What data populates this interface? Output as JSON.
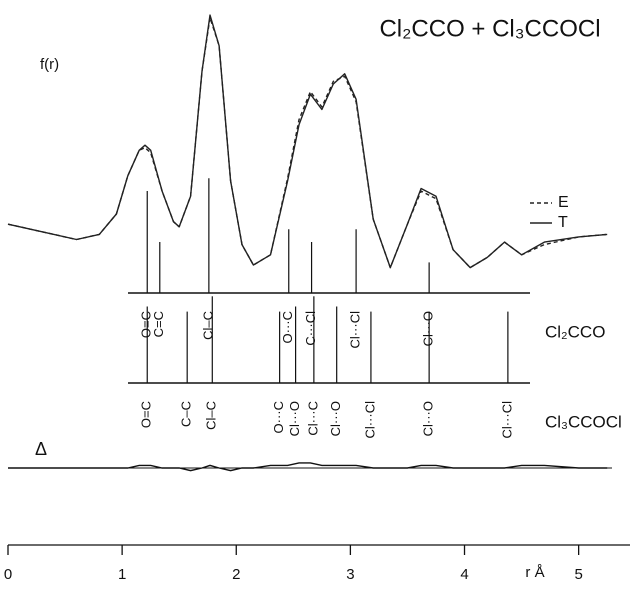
{
  "chart_data": {
    "type": "line",
    "title": "Cl₂CCO + Cl₃CCOCl",
    "ylabel": "f(r)",
    "xlabel": "r Å",
    "x": [
      0,
      0.3,
      0.6,
      0.8,
      0.95,
      1.05,
      1.15,
      1.2,
      1.25,
      1.35,
      1.45,
      1.5,
      1.6,
      1.7,
      1.77,
      1.85,
      1.95,
      2.05,
      2.15,
      2.3,
      2.45,
      2.55,
      2.65,
      2.75,
      2.85,
      2.95,
      3.05,
      3.2,
      3.35,
      3.5,
      3.62,
      3.75,
      3.9,
      4.05,
      4.2,
      4.35,
      4.5,
      4.7,
      5.0,
      5.25
    ],
    "series": [
      {
        "name": "E",
        "color": "#222222",
        "style": "dashed",
        "values": [
          16,
          13,
          10,
          12,
          20,
          35,
          45,
          46,
          44,
          29,
          17,
          15,
          27,
          76,
          97,
          86,
          33,
          8,
          0,
          4,
          34,
          57,
          68,
          62,
          72,
          74,
          64,
          18,
          -1,
          16,
          29,
          26,
          6,
          -1,
          3,
          9,
          4,
          8,
          11,
          12
        ]
      },
      {
        "name": "T",
        "color": "#222222",
        "style": "solid",
        "values": [
          16,
          13,
          10,
          12,
          20,
          35,
          45,
          47,
          45,
          29,
          17,
          15,
          27,
          76,
          98,
          86,
          33,
          8,
          0,
          4,
          33,
          55,
          67,
          61,
          71,
          75,
          65,
          18,
          -1,
          16,
          30,
          27,
          6,
          -1,
          3,
          9,
          4,
          9,
          11,
          12
        ]
      }
    ],
    "difference": {
      "label": "Δ",
      "values": [
        0,
        0,
        0,
        0,
        0,
        0,
        1,
        1,
        1,
        0,
        0,
        0,
        -1,
        0,
        1,
        0,
        -1,
        0,
        0,
        1,
        1,
        2,
        2,
        1,
        1,
        1,
        1,
        0,
        0,
        0,
        1,
        1,
        0,
        0,
        0,
        0,
        1,
        1,
        0,
        0
      ]
    },
    "sticks": [
      {
        "name": "Cl₂CCO",
        "lines": [
          {
            "r": 1.22,
            "height": 40,
            "label": "O=C"
          },
          {
            "r": 1.33,
            "height": 20,
            "label": "C=C"
          },
          {
            "r": 1.76,
            "height": 45,
            "label": "Cl–C"
          },
          {
            "r": 2.46,
            "height": 25,
            "label": "O···C"
          },
          {
            "r": 2.66,
            "height": 20,
            "label": "C···Cl"
          },
          {
            "r": 3.05,
            "height": 25,
            "label": "Cl···Cl"
          },
          {
            "r": 3.69,
            "height": 12,
            "label": "Cl···O"
          }
        ]
      },
      {
        "name": "Cl₃CCOCl",
        "lines": [
          {
            "r": 1.22,
            "height": 30,
            "label": "O=C"
          },
          {
            "r": 1.57,
            "height": 28,
            "label": "C–C"
          },
          {
            "r": 1.79,
            "height": 34,
            "label": "Cl–C"
          },
          {
            "r": 2.38,
            "height": 28,
            "label": "O···C"
          },
          {
            "r": 2.52,
            "height": 30,
            "label": "Cl···O"
          },
          {
            "r": 2.68,
            "height": 34,
            "label": "Cl···C"
          },
          {
            "r": 2.88,
            "height": 30,
            "label": "Cl···O"
          },
          {
            "r": 3.18,
            "height": 28,
            "label": "Cl···Cl"
          },
          {
            "r": 3.69,
            "height": 28,
            "label": "Cl···O"
          },
          {
            "r": 4.38,
            "height": 28,
            "label": "Cl···Cl"
          }
        ]
      }
    ],
    "xlim": [
      0,
      5.45
    ],
    "xticks": [
      0,
      1,
      2,
      3,
      4,
      5
    ],
    "ylim": [
      -5,
      100
    ],
    "legend": "right"
  }
}
